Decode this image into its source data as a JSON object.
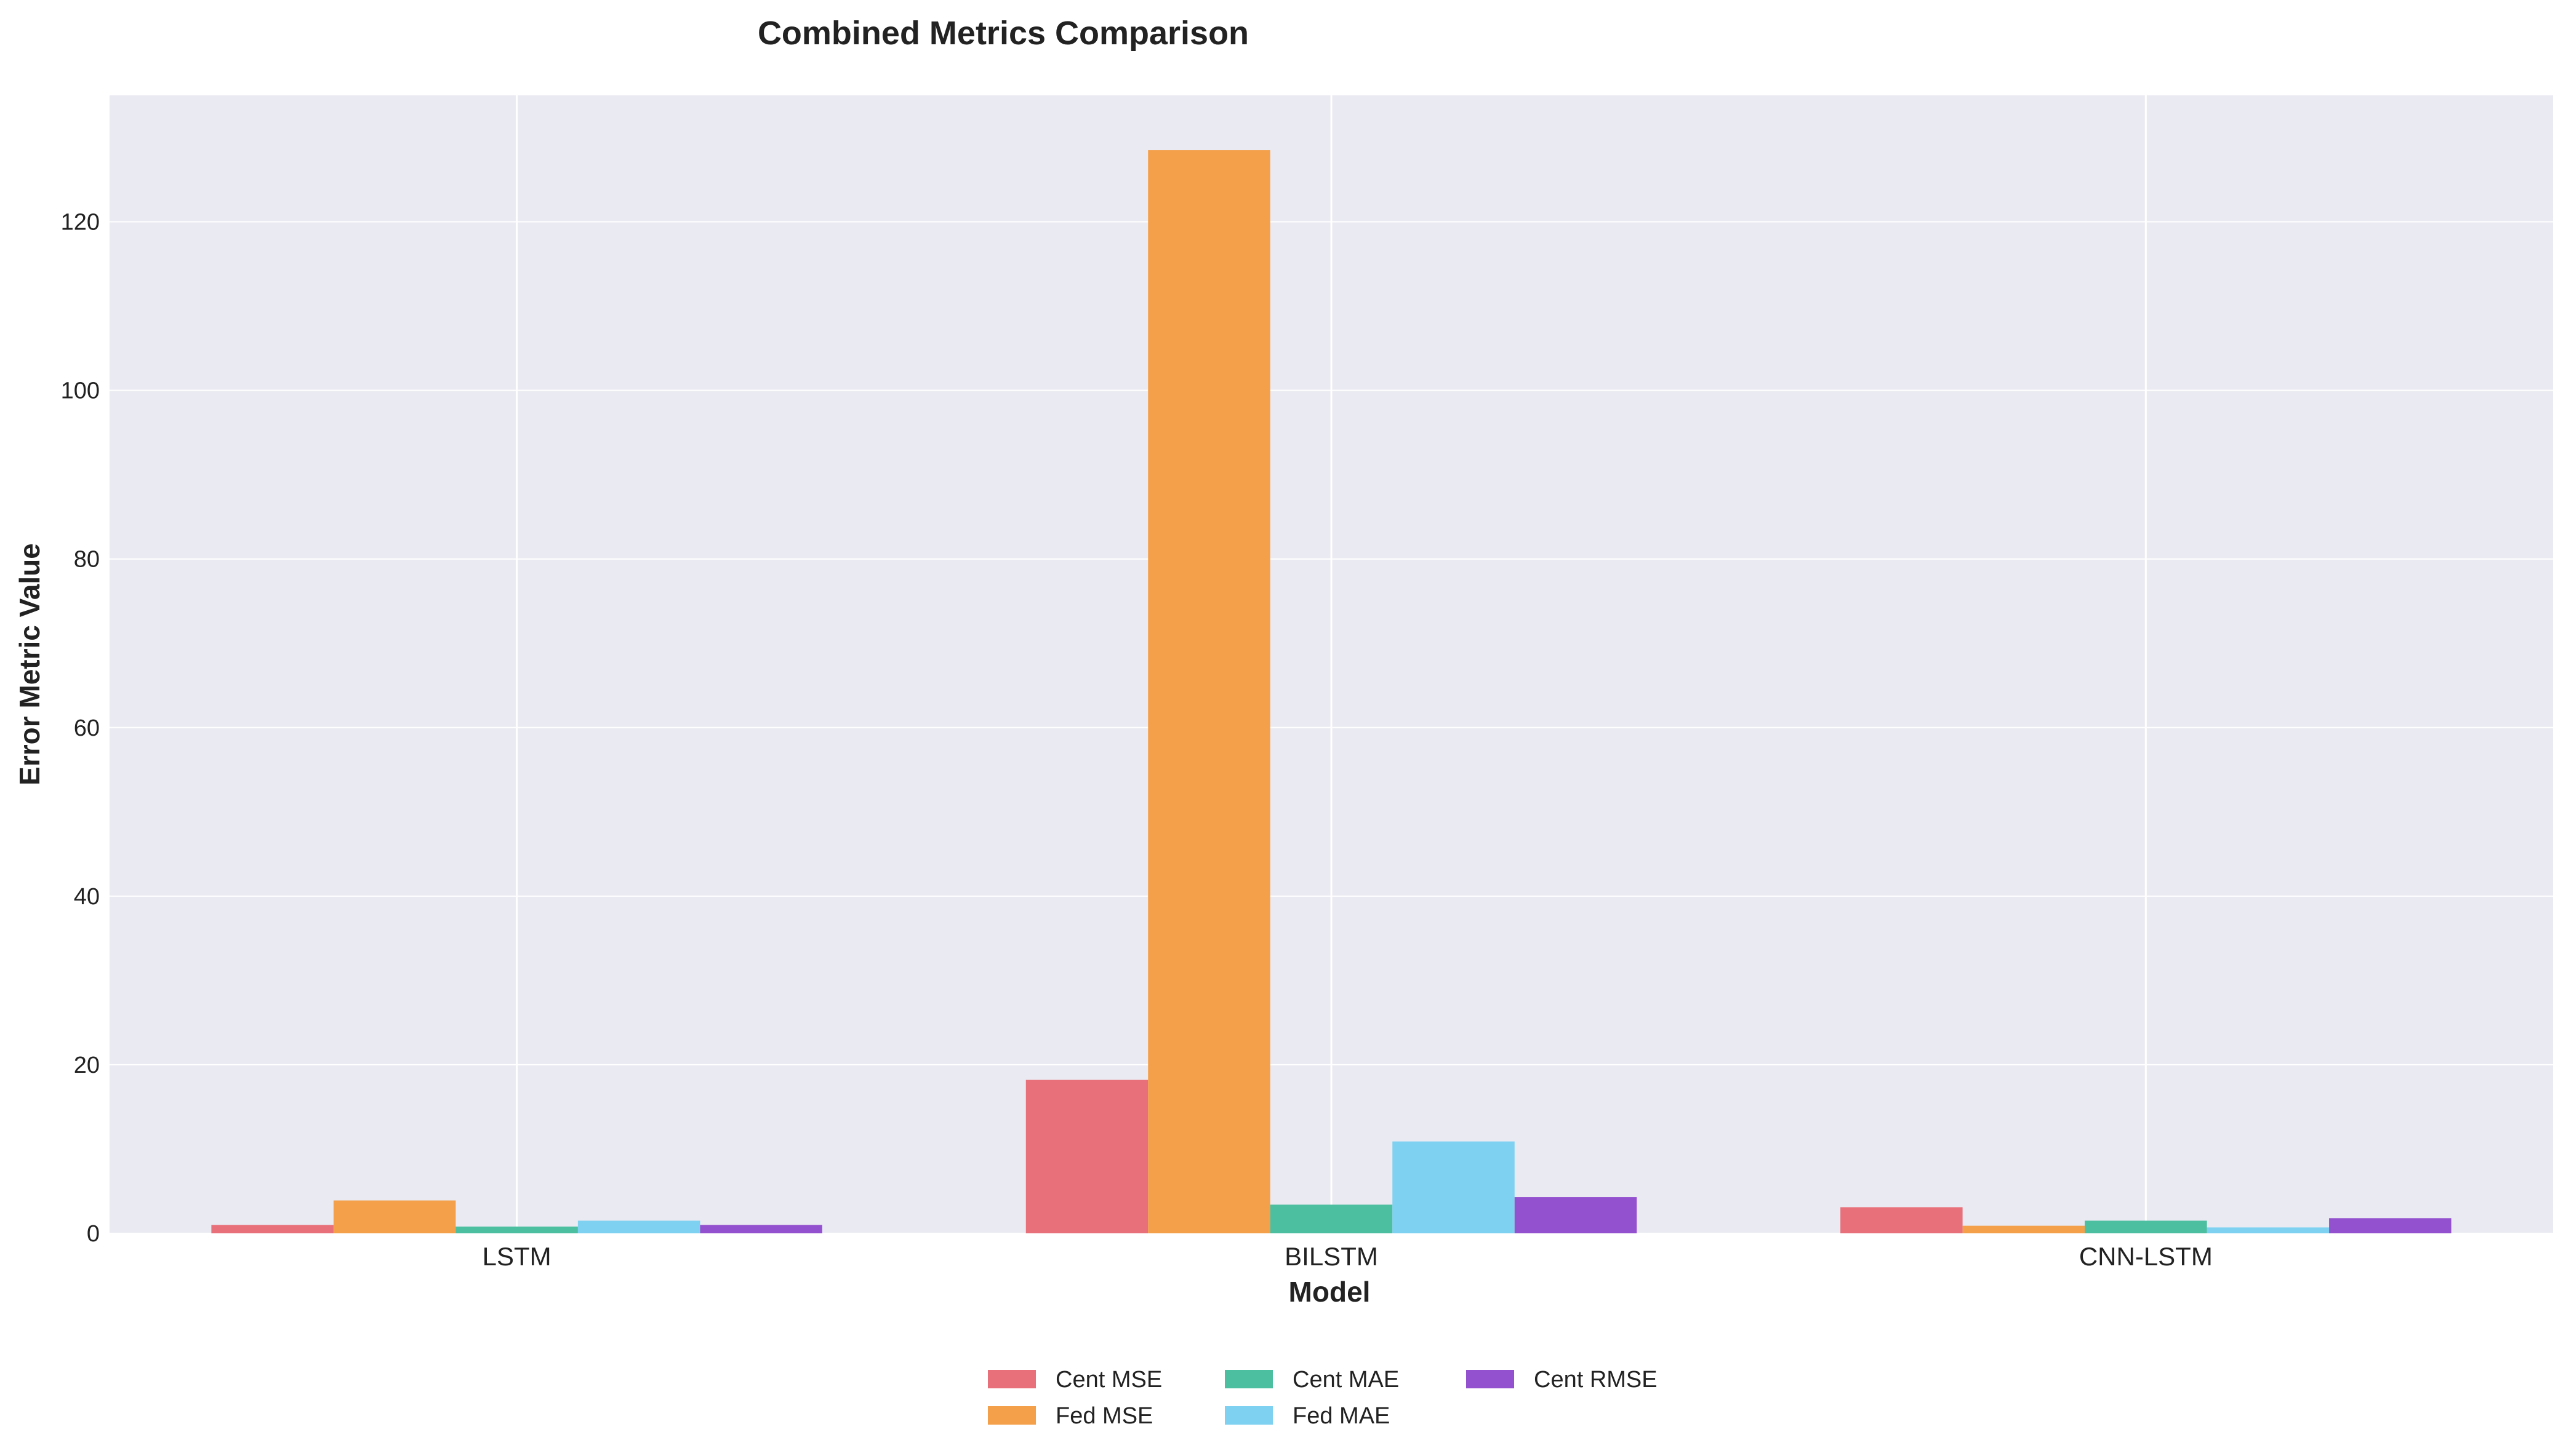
{
  "chart_data": {
    "type": "bar",
    "title": "Combined Metrics Comparison",
    "xlabel": "Model",
    "ylabel": "Error Metric Value",
    "categories": [
      "LSTM",
      "BILSTM",
      "CNN-LSTM"
    ],
    "ylim": [
      0,
      135
    ],
    "yticks": [
      0,
      20,
      40,
      60,
      80,
      100,
      120
    ],
    "grid": true,
    "legend_position": "bottom-center",
    "series": [
      {
        "name": "Cent MSE",
        "color": "#e8707a",
        "values": [
          1.0,
          18.2,
          3.1
        ]
      },
      {
        "name": "Fed MSE",
        "color": "#f4a04a",
        "values": [
          3.9,
          128.5,
          0.9
        ]
      },
      {
        "name": "Cent MAE",
        "color": "#4cbfa0",
        "values": [
          0.8,
          3.4,
          1.5
        ]
      },
      {
        "name": "Fed MAE",
        "color": "#7ed1f0",
        "values": [
          1.5,
          10.9,
          0.7
        ]
      },
      {
        "name": "Cent RMSE",
        "color": "#9451cf",
        "values": [
          1.0,
          4.3,
          1.8
        ]
      }
    ]
  }
}
